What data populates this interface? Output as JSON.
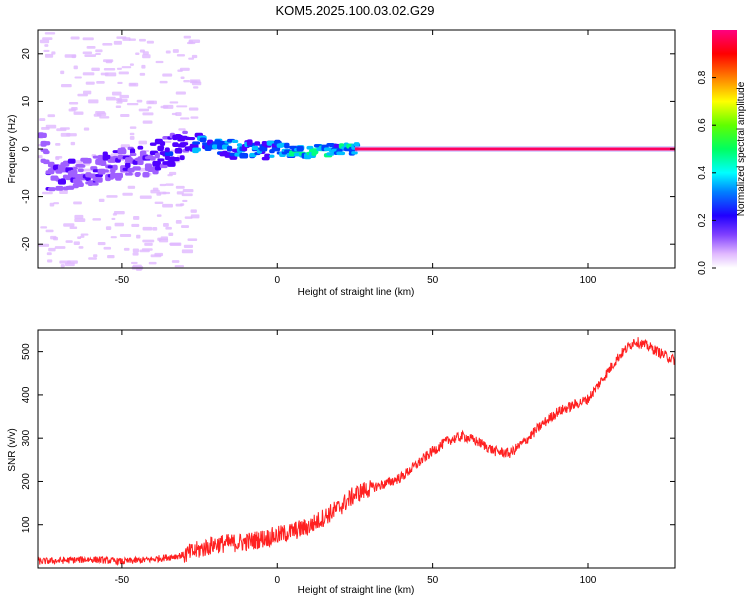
{
  "figure": {
    "title": "KOM5.2025.100.03.02.G29"
  },
  "chart_data": [
    {
      "type": "heatmap",
      "name": "spectrogram",
      "xlabel": "Height of straight line (km)",
      "ylabel": "Frequency (Hz)",
      "xlim": [
        -77,
        128
      ],
      "ylim": [
        -25,
        25
      ],
      "xticks": [
        -50,
        0,
        50,
        100
      ],
      "yticks": [
        -20,
        -10,
        0,
        10,
        20
      ],
      "colorbar": {
        "label": "Normalized spectral amplitude",
        "range": [
          0,
          1
        ],
        "ticks": [
          "0.0",
          "0.2",
          "0.4",
          "0.6",
          "0.8"
        ],
        "colormap": [
          "#ffffff",
          "#e0b8ff",
          "#a060ff",
          "#5000ff",
          "#0040ff",
          "#00c0ff",
          "#00ff80",
          "#60ff00",
          "#ffff00",
          "#ff8000",
          "#ff0000",
          "#ff0080"
        ]
      },
      "ridge": [
        {
          "x": -75,
          "y": -6
        },
        {
          "x": -65,
          "y": -5.5
        },
        {
          "x": -55,
          "y": -3.5
        },
        {
          "x": -45,
          "y": -2.5
        },
        {
          "x": -38,
          "y": -1
        },
        {
          "x": -30,
          "y": 1
        },
        {
          "x": -25,
          "y": 1.5
        },
        {
          "x": -18,
          "y": 0.5
        },
        {
          "x": -10,
          "y": 0
        },
        {
          "x": -5,
          "y": -0.5
        },
        {
          "x": 0,
          "y": 0
        },
        {
          "x": 10,
          "y": -0.5
        },
        {
          "x": 20,
          "y": 0
        },
        {
          "x": 25,
          "y": 0
        },
        {
          "x": 128,
          "y": 0
        }
      ],
      "strong_band_from": 25
    },
    {
      "type": "line",
      "name": "snr",
      "xlabel": "Height of straight line (km)",
      "ylabel": "SNR (v/v)",
      "xlim": [
        -77,
        128
      ],
      "ylim": [
        0,
        550
      ],
      "xticks": [
        -50,
        0,
        50,
        100
      ],
      "yticks": [
        100,
        200,
        300,
        400,
        500
      ],
      "color": "#ff2020",
      "x": [
        -77,
        -60,
        -50,
        -40,
        -30,
        -20,
        -10,
        0,
        10,
        20,
        25,
        30,
        35,
        40,
        45,
        50,
        55,
        60,
        65,
        70,
        75,
        80,
        85,
        90,
        95,
        100,
        105,
        110,
        115,
        120,
        125,
        128
      ],
      "y": [
        15,
        20,
        15,
        20,
        30,
        55,
        60,
        75,
        95,
        140,
        170,
        185,
        195,
        210,
        240,
        270,
        295,
        305,
        290,
        270,
        265,
        295,
        330,
        360,
        375,
        390,
        440,
        490,
        525,
        510,
        490,
        480
      ]
    }
  ]
}
